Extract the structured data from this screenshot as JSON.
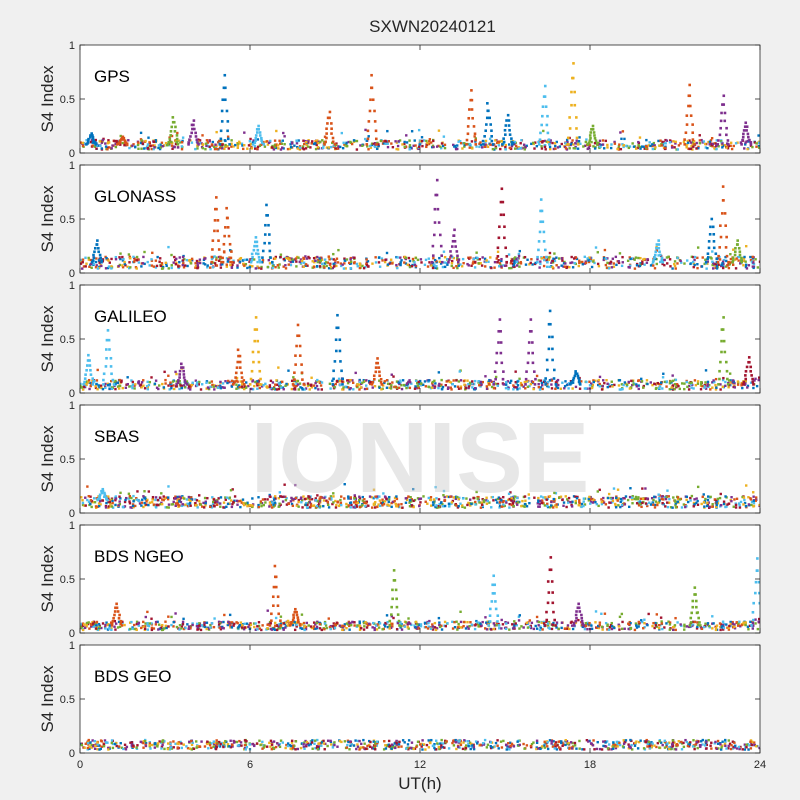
{
  "title": "SXWN20240121",
  "watermark": "IONISE",
  "xlabel": "UT(h)",
  "ylabel": "S4 Index",
  "colors": [
    "#0072BD",
    "#D95319",
    "#EDB120",
    "#7E2F8E",
    "#77AC30",
    "#4DBEEE",
    "#A2142F"
  ],
  "chart_data": [
    {
      "type": "scatter",
      "title": "GPS",
      "xlim": [
        0,
        24
      ],
      "ylim": [
        0,
        1
      ],
      "xticks": [
        0,
        6,
        12,
        18,
        24
      ],
      "yticks": [
        0,
        0.5,
        1
      ],
      "baseline": 0.08,
      "spikes": [
        {
          "x": 0.4,
          "y": 0.18,
          "c": 0
        },
        {
          "x": 1.5,
          "y": 0.15,
          "c": 1
        },
        {
          "x": 3.3,
          "y": 0.33,
          "c": 4
        },
        {
          "x": 4.0,
          "y": 0.3,
          "c": 3
        },
        {
          "x": 5.1,
          "y": 0.72,
          "c": 0
        },
        {
          "x": 6.3,
          "y": 0.25,
          "c": 5
        },
        {
          "x": 8.8,
          "y": 0.38,
          "c": 1
        },
        {
          "x": 10.3,
          "y": 0.72,
          "c": 1
        },
        {
          "x": 13.8,
          "y": 0.58,
          "c": 1
        },
        {
          "x": 14.4,
          "y": 0.46,
          "c": 0
        },
        {
          "x": 15.1,
          "y": 0.35,
          "c": 0
        },
        {
          "x": 16.4,
          "y": 0.62,
          "c": 5
        },
        {
          "x": 17.4,
          "y": 0.83,
          "c": 2
        },
        {
          "x": 18.1,
          "y": 0.25,
          "c": 4
        },
        {
          "x": 21.5,
          "y": 0.63,
          "c": 1
        },
        {
          "x": 22.7,
          "y": 0.53,
          "c": 3
        },
        {
          "x": 23.5,
          "y": 0.28,
          "c": 3
        }
      ]
    },
    {
      "type": "scatter",
      "title": "GLONASS",
      "xlim": [
        0,
        24
      ],
      "ylim": [
        0,
        1
      ],
      "xticks": [
        0,
        6,
        12,
        18,
        24
      ],
      "yticks": [
        0,
        0.5,
        1
      ],
      "baseline": 0.1,
      "spikes": [
        {
          "x": 0.6,
          "y": 0.3,
          "c": 0
        },
        {
          "x": 4.8,
          "y": 0.7,
          "c": 1
        },
        {
          "x": 5.2,
          "y": 0.6,
          "c": 1
        },
        {
          "x": 6.6,
          "y": 0.63,
          "c": 0
        },
        {
          "x": 6.2,
          "y": 0.33,
          "c": 5
        },
        {
          "x": 12.6,
          "y": 0.86,
          "c": 3
        },
        {
          "x": 13.2,
          "y": 0.4,
          "c": 3
        },
        {
          "x": 14.9,
          "y": 0.78,
          "c": 6
        },
        {
          "x": 16.3,
          "y": 0.68,
          "c": 5
        },
        {
          "x": 20.4,
          "y": 0.3,
          "c": 5
        },
        {
          "x": 22.3,
          "y": 0.5,
          "c": 0
        },
        {
          "x": 22.7,
          "y": 0.8,
          "c": 1
        },
        {
          "x": 23.2,
          "y": 0.3,
          "c": 4
        }
      ]
    },
    {
      "type": "scatter",
      "title": "GALILEO",
      "xlim": [
        0,
        24
      ],
      "ylim": [
        0,
        1
      ],
      "xticks": [
        0,
        6,
        12,
        18,
        24
      ],
      "yticks": [
        0,
        0.5,
        1
      ],
      "baseline": 0.08,
      "spikes": [
        {
          "x": 0.3,
          "y": 0.35,
          "c": 5
        },
        {
          "x": 1.0,
          "y": 0.58,
          "c": 5
        },
        {
          "x": 3.6,
          "y": 0.27,
          "c": 3
        },
        {
          "x": 5.6,
          "y": 0.4,
          "c": 1
        },
        {
          "x": 6.2,
          "y": 0.7,
          "c": 2
        },
        {
          "x": 7.7,
          "y": 0.63,
          "c": 1
        },
        {
          "x": 9.1,
          "y": 0.72,
          "c": 0
        },
        {
          "x": 10.5,
          "y": 0.32,
          "c": 1
        },
        {
          "x": 14.8,
          "y": 0.68,
          "c": 3
        },
        {
          "x": 15.9,
          "y": 0.68,
          "c": 3
        },
        {
          "x": 16.6,
          "y": 0.76,
          "c": 0
        },
        {
          "x": 17.5,
          "y": 0.2,
          "c": 0
        },
        {
          "x": 22.7,
          "y": 0.7,
          "c": 4
        },
        {
          "x": 23.6,
          "y": 0.33,
          "c": 6
        }
      ]
    },
    {
      "type": "scatter",
      "title": "SBAS",
      "xlim": [
        0,
        24
      ],
      "ylim": [
        0,
        1
      ],
      "xticks": [
        0,
        6,
        12,
        18,
        24
      ],
      "yticks": [
        0,
        0.5,
        1
      ],
      "baseline": 0.12,
      "spikes": [
        {
          "x": 0.8,
          "y": 0.22,
          "c": 5
        }
      ]
    },
    {
      "type": "scatter",
      "title": "BDS NGEO",
      "xlim": [
        0,
        24
      ],
      "ylim": [
        0,
        1
      ],
      "xticks": [
        0,
        6,
        12,
        18,
        24
      ],
      "yticks": [
        0,
        0.5,
        1
      ],
      "baseline": 0.07,
      "spikes": [
        {
          "x": 1.3,
          "y": 0.27,
          "c": 1
        },
        {
          "x": 6.9,
          "y": 0.62,
          "c": 1
        },
        {
          "x": 7.6,
          "y": 0.22,
          "c": 1
        },
        {
          "x": 11.1,
          "y": 0.58,
          "c": 4
        },
        {
          "x": 14.6,
          "y": 0.53,
          "c": 5
        },
        {
          "x": 16.6,
          "y": 0.7,
          "c": 6
        },
        {
          "x": 17.6,
          "y": 0.27,
          "c": 3
        },
        {
          "x": 21.7,
          "y": 0.42,
          "c": 4
        },
        {
          "x": 23.9,
          "y": 0.69,
          "c": 5
        }
      ]
    },
    {
      "type": "scatter",
      "title": "BDS GEO",
      "xlim": [
        0,
        24
      ],
      "ylim": [
        0,
        1
      ],
      "xticks": [
        0,
        6,
        12,
        18,
        24
      ],
      "yticks": [
        0,
        0.5,
        1
      ],
      "baseline": 0.08,
      "spikes": []
    }
  ]
}
